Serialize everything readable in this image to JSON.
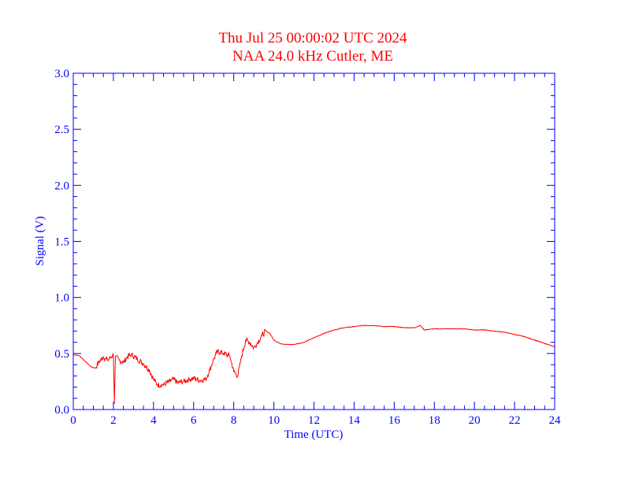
{
  "chart_data": {
    "type": "line",
    "title": "Thu Jul 25 00:00:02 UTC 2024",
    "subtitle": "NAA 24.0 kHz Cutler, ME",
    "xlabel": "Time (UTC)",
    "ylabel": "Signal (V)",
    "xlim": [
      0,
      24
    ],
    "ylim": [
      0,
      3.0
    ],
    "x_ticks": [
      "0",
      "2",
      "4",
      "6",
      "8",
      "10",
      "12",
      "14",
      "16",
      "18",
      "20",
      "22",
      "24"
    ],
    "y_ticks": [
      "0.0",
      "0.5",
      "1.0",
      "1.5",
      "2.0",
      "2.5",
      "3.0"
    ],
    "grid": false,
    "colors": {
      "axis": "#0000ff",
      "title": "#ff0000",
      "series": "#ff0000"
    },
    "series": [
      {
        "x": [
          0,
          0.3,
          0.6,
          0.9,
          1.1,
          1.3,
          1.5,
          1.7,
          1.9,
          2.0,
          2.05,
          2.1,
          2.3,
          2.5,
          2.7,
          2.9,
          3.2,
          3.5,
          3.8,
          4.0,
          4.2,
          4.5,
          4.8,
          5.0,
          5.2,
          5.5,
          5.8,
          6.0,
          6.3,
          6.6,
          6.8,
          7.0,
          7.2,
          7.5,
          7.8,
          8.0,
          8.2,
          8.4,
          8.6,
          8.8,
          9.0,
          9.2,
          9.4,
          9.6,
          9.8,
          10.0,
          10.3,
          10.6,
          11.0,
          11.5,
          12.0,
          12.5,
          13.0,
          13.5,
          14.0,
          14.5,
          15.0,
          15.5,
          16.0,
          16.5,
          17.0,
          17.3,
          17.5,
          18.0,
          18.5,
          19.0,
          19.5,
          20.0,
          20.5,
          21.0,
          21.5,
          22.0,
          22.5,
          23.0,
          23.5,
          24.0
        ],
        "values": [
          0.49,
          0.48,
          0.43,
          0.38,
          0.37,
          0.43,
          0.47,
          0.44,
          0.47,
          0.49,
          0.05,
          0.47,
          0.44,
          0.42,
          0.47,
          0.49,
          0.45,
          0.41,
          0.35,
          0.27,
          0.22,
          0.22,
          0.25,
          0.27,
          0.24,
          0.25,
          0.27,
          0.28,
          0.26,
          0.27,
          0.35,
          0.45,
          0.52,
          0.5,
          0.48,
          0.34,
          0.3,
          0.48,
          0.62,
          0.6,
          0.55,
          0.6,
          0.66,
          0.7,
          0.68,
          0.62,
          0.59,
          0.58,
          0.58,
          0.6,
          0.64,
          0.68,
          0.71,
          0.73,
          0.74,
          0.75,
          0.75,
          0.74,
          0.74,
          0.73,
          0.73,
          0.75,
          0.71,
          0.72,
          0.72,
          0.72,
          0.72,
          0.71,
          0.71,
          0.7,
          0.69,
          0.67,
          0.65,
          0.62,
          0.59,
          0.56
        ]
      }
    ]
  }
}
